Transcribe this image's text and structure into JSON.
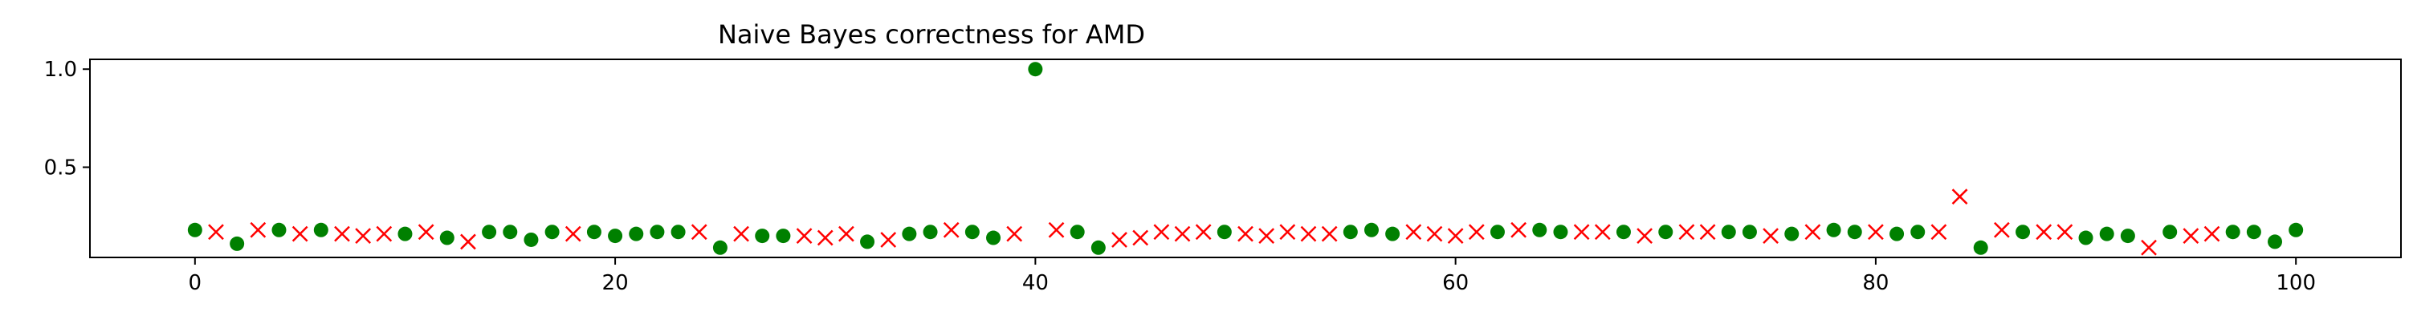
{
  "chart_data": {
    "type": "scatter",
    "title": "Naive Bayes correctness for AMD",
    "xlabel": "",
    "ylabel": "",
    "xlim": [
      -5,
      105
    ],
    "ylim": [
      0.04,
      1.05
    ],
    "xticks": [
      0,
      20,
      40,
      60,
      80,
      100
    ],
    "yticks": [
      0.5,
      1.0
    ],
    "xtick_labels": [
      "0",
      "20",
      "40",
      "60",
      "80",
      "100"
    ],
    "ytick_labels": [
      "0.5",
      "1.0"
    ],
    "grid": false,
    "legend": "none",
    "series": [
      {
        "marker": "circle",
        "color": "#008000",
        "points": [
          {
            "x": 0,
            "y": 0.18
          },
          {
            "x": 2,
            "y": 0.11
          },
          {
            "x": 4,
            "y": 0.18
          },
          {
            "x": 6,
            "y": 0.18
          },
          {
            "x": 10,
            "y": 0.16
          },
          {
            "x": 12,
            "y": 0.14
          },
          {
            "x": 14,
            "y": 0.17
          },
          {
            "x": 15,
            "y": 0.17
          },
          {
            "x": 16,
            "y": 0.13
          },
          {
            "x": 17,
            "y": 0.17
          },
          {
            "x": 19,
            "y": 0.17
          },
          {
            "x": 20,
            "y": 0.15
          },
          {
            "x": 21,
            "y": 0.16
          },
          {
            "x": 22,
            "y": 0.17
          },
          {
            "x": 23,
            "y": 0.17
          },
          {
            "x": 25,
            "y": 0.09
          },
          {
            "x": 27,
            "y": 0.15
          },
          {
            "x": 28,
            "y": 0.15
          },
          {
            "x": 32,
            "y": 0.12
          },
          {
            "x": 34,
            "y": 0.16
          },
          {
            "x": 35,
            "y": 0.17
          },
          {
            "x": 37,
            "y": 0.17
          },
          {
            "x": 38,
            "y": 0.14
          },
          {
            "x": 40,
            "y": 1.0
          },
          {
            "x": 42,
            "y": 0.17
          },
          {
            "x": 43,
            "y": 0.09
          },
          {
            "x": 49,
            "y": 0.17
          },
          {
            "x": 55,
            "y": 0.17
          },
          {
            "x": 56,
            "y": 0.18
          },
          {
            "x": 57,
            "y": 0.16
          },
          {
            "x": 62,
            "y": 0.17
          },
          {
            "x": 64,
            "y": 0.18
          },
          {
            "x": 65,
            "y": 0.17
          },
          {
            "x": 68,
            "y": 0.17
          },
          {
            "x": 70,
            "y": 0.17
          },
          {
            "x": 73,
            "y": 0.17
          },
          {
            "x": 74,
            "y": 0.17
          },
          {
            "x": 76,
            "y": 0.16
          },
          {
            "x": 78,
            "y": 0.18
          },
          {
            "x": 79,
            "y": 0.17
          },
          {
            "x": 81,
            "y": 0.16
          },
          {
            "x": 82,
            "y": 0.17
          },
          {
            "x": 85,
            "y": 0.09
          },
          {
            "x": 87,
            "y": 0.17
          },
          {
            "x": 90,
            "y": 0.14
          },
          {
            "x": 91,
            "y": 0.16
          },
          {
            "x": 92,
            "y": 0.15
          },
          {
            "x": 94,
            "y": 0.17
          },
          {
            "x": 97,
            "y": 0.17
          },
          {
            "x": 98,
            "y": 0.17
          },
          {
            "x": 99,
            "y": 0.12
          },
          {
            "x": 100,
            "y": 0.18
          }
        ]
      },
      {
        "marker": "x",
        "color": "#ff0000",
        "points": [
          {
            "x": 1,
            "y": 0.17
          },
          {
            "x": 3,
            "y": 0.18
          },
          {
            "x": 5,
            "y": 0.16
          },
          {
            "x": 7,
            "y": 0.16
          },
          {
            "x": 8,
            "y": 0.15
          },
          {
            "x": 9,
            "y": 0.16
          },
          {
            "x": 11,
            "y": 0.17
          },
          {
            "x": 13,
            "y": 0.12
          },
          {
            "x": 18,
            "y": 0.16
          },
          {
            "x": 24,
            "y": 0.17
          },
          {
            "x": 26,
            "y": 0.16
          },
          {
            "x": 29,
            "y": 0.15
          },
          {
            "x": 30,
            "y": 0.14
          },
          {
            "x": 31,
            "y": 0.16
          },
          {
            "x": 33,
            "y": 0.13
          },
          {
            "x": 36,
            "y": 0.18
          },
          {
            "x": 39,
            "y": 0.16
          },
          {
            "x": 41,
            "y": 0.18
          },
          {
            "x": 44,
            "y": 0.13
          },
          {
            "x": 45,
            "y": 0.14
          },
          {
            "x": 46,
            "y": 0.17
          },
          {
            "x": 47,
            "y": 0.16
          },
          {
            "x": 48,
            "y": 0.17
          },
          {
            "x": 50,
            "y": 0.16
          },
          {
            "x": 51,
            "y": 0.15
          },
          {
            "x": 52,
            "y": 0.17
          },
          {
            "x": 53,
            "y": 0.16
          },
          {
            "x": 54,
            "y": 0.16
          },
          {
            "x": 58,
            "y": 0.17
          },
          {
            "x": 59,
            "y": 0.16
          },
          {
            "x": 60,
            "y": 0.15
          },
          {
            "x": 61,
            "y": 0.17
          },
          {
            "x": 63,
            "y": 0.18
          },
          {
            "x": 66,
            "y": 0.17
          },
          {
            "x": 67,
            "y": 0.17
          },
          {
            "x": 69,
            "y": 0.15
          },
          {
            "x": 71,
            "y": 0.17
          },
          {
            "x": 72,
            "y": 0.17
          },
          {
            "x": 75,
            "y": 0.15
          },
          {
            "x": 77,
            "y": 0.17
          },
          {
            "x": 80,
            "y": 0.17
          },
          {
            "x": 83,
            "y": 0.17
          },
          {
            "x": 84,
            "y": 0.35
          },
          {
            "x": 86,
            "y": 0.18
          },
          {
            "x": 88,
            "y": 0.17
          },
          {
            "x": 89,
            "y": 0.17
          },
          {
            "x": 93,
            "y": 0.09
          },
          {
            "x": 95,
            "y": 0.15
          },
          {
            "x": 96,
            "y": 0.16
          }
        ]
      }
    ]
  }
}
